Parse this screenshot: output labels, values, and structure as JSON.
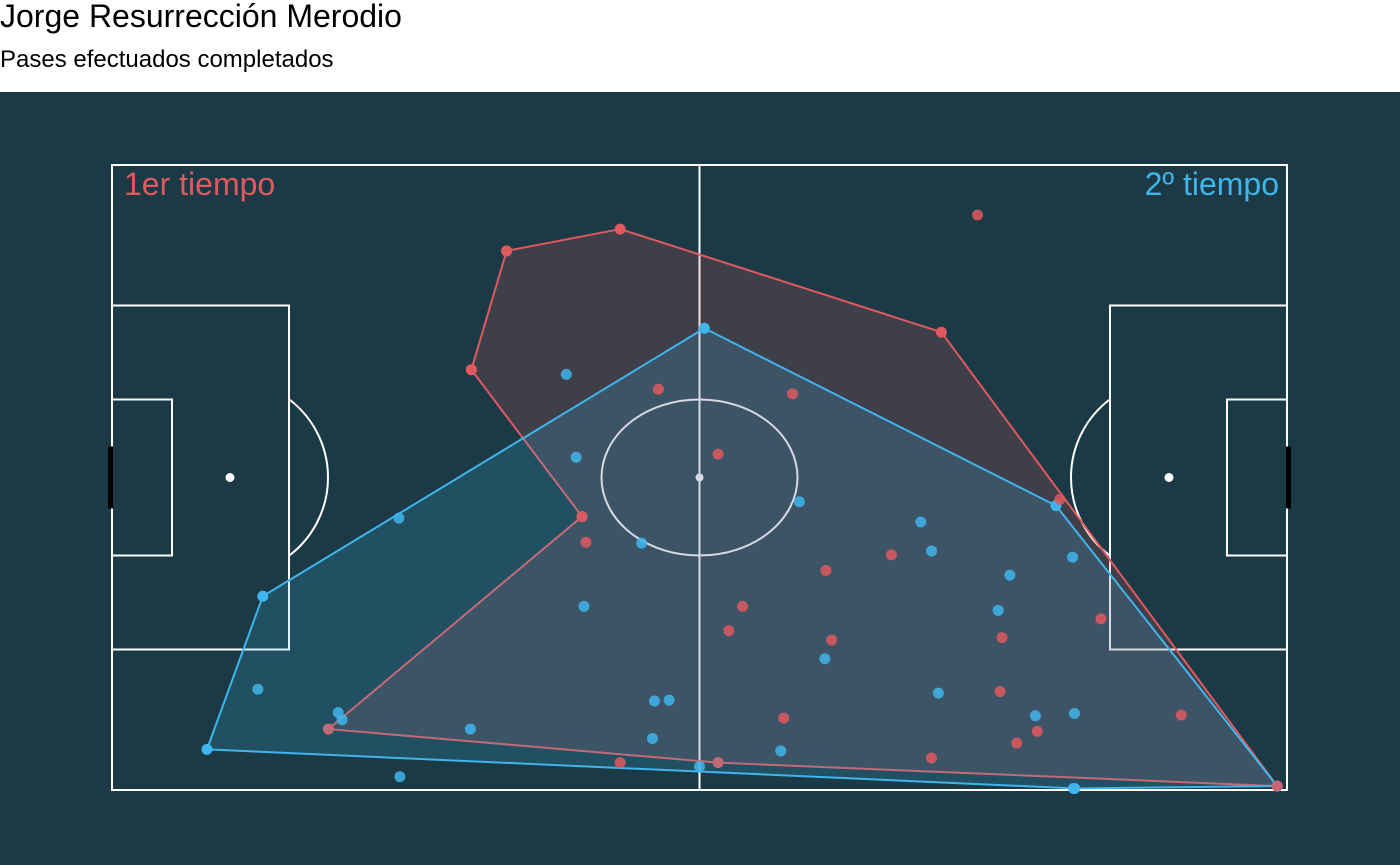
{
  "header": {
    "title": "Jorge Resurrección Merodio",
    "subtitle": "Pases efectuados completados"
  },
  "colors": {
    "background": "#1b3a45",
    "pitch_lines": "#ffffff",
    "first_half": "#e0595f",
    "second_half": "#3fb5ec"
  },
  "chart_data": {
    "type": "scatter",
    "x_range": [
      0,
      120
    ],
    "y_range": [
      0,
      80
    ],
    "series": [
      {
        "key": "first_half",
        "name": "1er tiempo",
        "points": [
          [
            36.7,
            53.8
          ],
          [
            40.3,
            69.0
          ],
          [
            48.0,
            35.0
          ],
          [
            48.4,
            31.7
          ],
          [
            55.8,
            51.3
          ],
          [
            69.5,
            50.7
          ],
          [
            61.9,
            43.0
          ],
          [
            64.4,
            23.5
          ],
          [
            72.9,
            28.1
          ],
          [
            73.5,
            19.2
          ],
          [
            79.6,
            30.1
          ],
          [
            83.7,
            4.1
          ],
          [
            90.7,
            12.6
          ],
          [
            90.9,
            19.5
          ],
          [
            92.4,
            6.0
          ],
          [
            94.5,
            7.5
          ],
          [
            88.4,
            73.6
          ],
          [
            63.0,
            20.4
          ],
          [
            51.9,
            3.5
          ],
          [
            68.6,
            9.2
          ],
          [
            96.8,
            37.2
          ],
          [
            101.0,
            21.9
          ],
          [
            109.2,
            9.6
          ],
          [
            119.0,
            0.5
          ]
        ],
        "hull": [
          [
            22.1,
            7.8
          ],
          [
            48.0,
            35.0
          ],
          [
            36.7,
            53.8
          ],
          [
            40.3,
            69.0
          ],
          [
            51.9,
            71.8
          ],
          [
            84.7,
            58.6
          ],
          [
            119.0,
            0.5
          ],
          [
            61.9,
            3.5
          ]
        ]
      },
      {
        "key": "second_half",
        "name": "2º tiempo",
        "points": [
          [
            14.9,
            12.9
          ],
          [
            23.1,
            9.9
          ],
          [
            23.5,
            9.0
          ],
          [
            29.3,
            34.8
          ],
          [
            36.6,
            7.8
          ],
          [
            29.4,
            1.7
          ],
          [
            47.4,
            42.6
          ],
          [
            46.4,
            53.2
          ],
          [
            48.2,
            23.5
          ],
          [
            54.1,
            31.6
          ],
          [
            55.4,
            11.4
          ],
          [
            56.9,
            11.5
          ],
          [
            55.2,
            6.6
          ],
          [
            68.3,
            5.0
          ],
          [
            72.8,
            16.8
          ],
          [
            70.2,
            36.9
          ],
          [
            83.7,
            30.6
          ],
          [
            82.6,
            34.3
          ],
          [
            84.4,
            12.4
          ],
          [
            98.1,
            29.8
          ],
          [
            91.7,
            27.5
          ],
          [
            94.3,
            9.5
          ],
          [
            98.3,
            9.8
          ],
          [
            60.0,
            3.0
          ],
          [
            90.5,
            23.0
          ]
        ],
        "hull": [
          [
            9.7,
            5.2
          ],
          [
            15.4,
            24.8
          ],
          [
            60.5,
            59.1
          ],
          [
            96.4,
            36.4
          ],
          [
            119.0,
            0.5
          ],
          [
            98.2,
            0.2
          ],
          [
            98.3,
            0.2
          ]
        ]
      }
    ]
  }
}
